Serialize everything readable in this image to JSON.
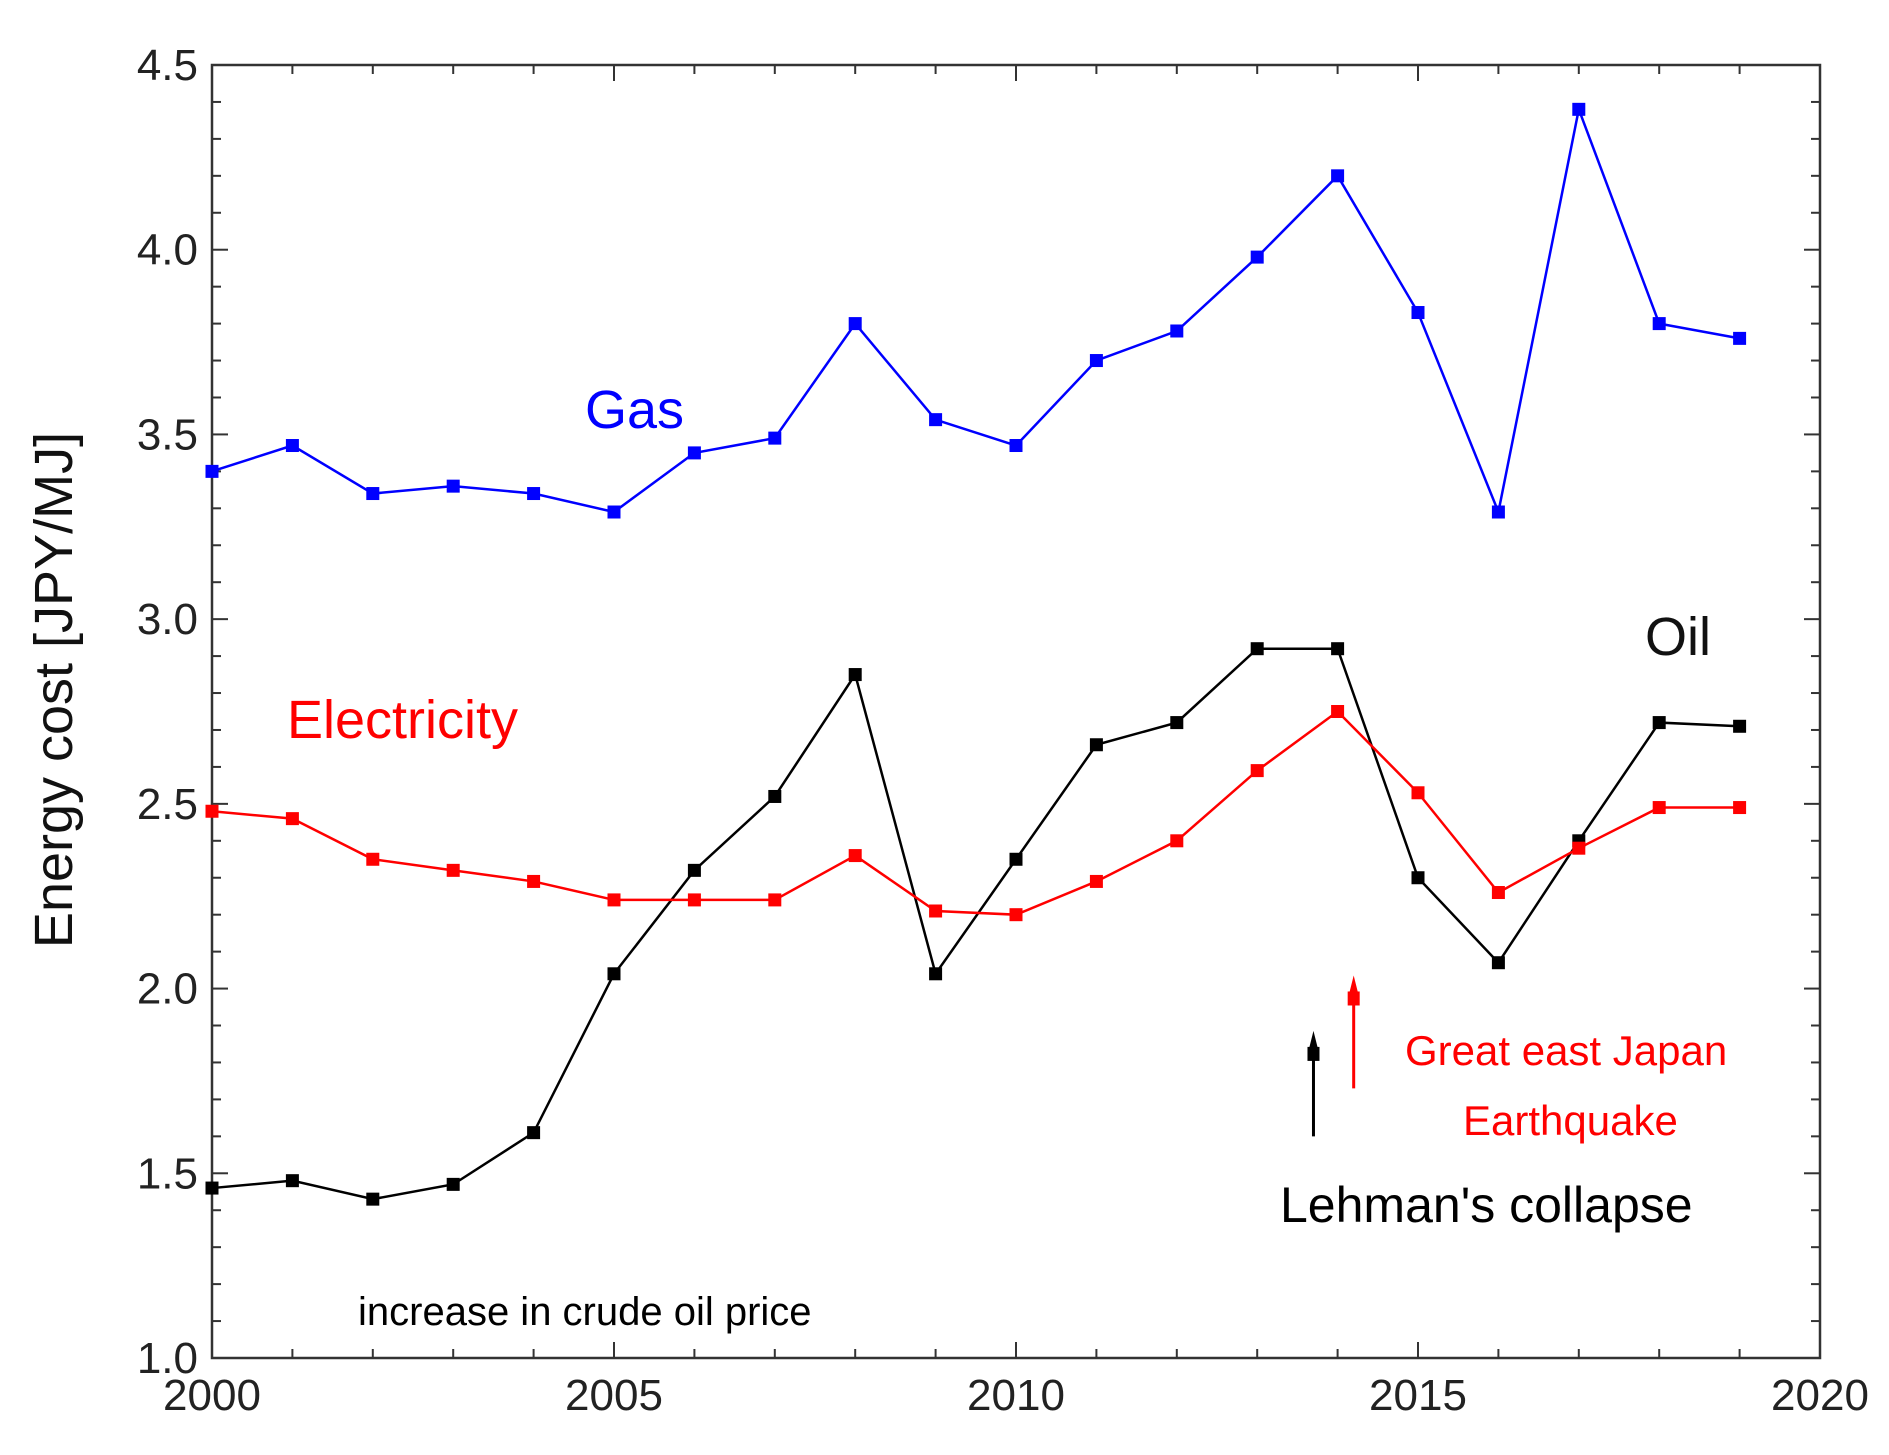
{
  "chart_data": {
    "type": "line",
    "title": "",
    "xlabel": "",
    "ylabel": "Energy cost [JPY/MJ]",
    "xlim": [
      2000,
      2020
    ],
    "ylim": [
      1.0,
      4.5
    ],
    "x_ticks": [
      "2000",
      "2005",
      "2010",
      "2015",
      "2020"
    ],
    "y_ticks": [
      "1.0",
      "1.5",
      "2.0",
      "2.5",
      "3.0",
      "3.5",
      "4.0",
      "4.5"
    ],
    "grid": false,
    "x": [
      2000,
      2001,
      2002,
      2003,
      2004,
      2005,
      2006,
      2007,
      2008,
      2009,
      2010,
      2011,
      2012,
      2013,
      2014,
      2015,
      2016,
      2017,
      2018,
      2019
    ],
    "series": [
      {
        "name": "Gas",
        "color": "#0000ff",
        "values": [
          3.4,
          3.47,
          3.34,
          3.36,
          3.34,
          3.29,
          3.45,
          3.49,
          3.8,
          3.54,
          3.47,
          3.7,
          3.78,
          3.98,
          4.2,
          3.83,
          3.29,
          4.38,
          3.8,
          3.76
        ]
      },
      {
        "name": "Oil",
        "color": "#000000",
        "values": [
          1.46,
          1.48,
          1.43,
          1.47,
          1.61,
          2.04,
          2.32,
          2.52,
          2.85,
          2.04,
          2.35,
          2.66,
          2.72,
          2.92,
          2.92,
          2.3,
          2.07,
          2.4,
          2.72,
          2.71
        ]
      },
      {
        "name": "Electricity",
        "color": "#ff0000",
        "values": [
          2.48,
          2.46,
          2.35,
          2.32,
          2.29,
          2.24,
          2.24,
          2.24,
          2.36,
          2.21,
          2.2,
          2.29,
          2.4,
          2.59,
          2.75,
          2.53,
          2.26,
          2.38,
          2.49,
          2.49
        ]
      }
    ],
    "annotations": [
      {
        "text": "increase in crude oil price",
        "color": "#000000"
      },
      {
        "text": "Lehman's collapse",
        "color": "#000000"
      },
      {
        "text": "Great east Japan",
        "color": "#ff0000"
      },
      {
        "text": "Earthquake",
        "color": "#ff0000"
      }
    ],
    "event_markers": [
      {
        "name": "lehman-collapse",
        "x": 2013.7,
        "y_from": 1.6,
        "y_to": 1.88,
        "color": "#000000"
      },
      {
        "name": "great-east-japan-earthquake",
        "x": 2014.2,
        "y_from": 1.73,
        "y_to": 2.03,
        "color": "#ff0000"
      }
    ]
  }
}
